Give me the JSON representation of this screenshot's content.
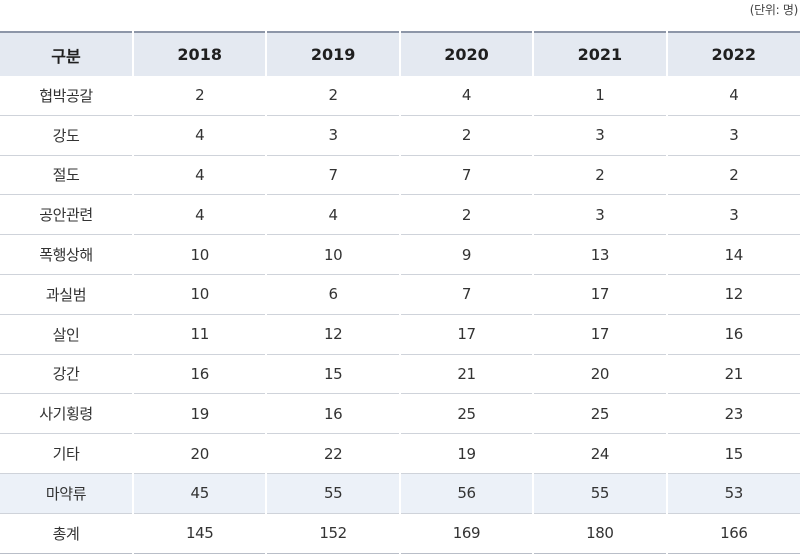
{
  "unit_note": "(단위: 명)",
  "header": [
    "구분",
    "2018",
    "2019",
    "2020",
    "2021",
    "2022"
  ],
  "rows": [
    {
      "label": "협박공갈",
      "values": [
        "2",
        "2",
        "4",
        "1",
        "4"
      ]
    },
    {
      "label": "강도",
      "values": [
        "4",
        "3",
        "2",
        "3",
        "3"
      ]
    },
    {
      "label": "절도",
      "values": [
        "4",
        "7",
        "7",
        "2",
        "2"
      ]
    },
    {
      "label": "공안관련",
      "values": [
        "4",
        "4",
        "2",
        "3",
        "3"
      ]
    },
    {
      "label": "폭행상해",
      "values": [
        "10",
        "10",
        "9",
        "13",
        "14"
      ]
    },
    {
      "label": "과실범",
      "values": [
        "10",
        "6",
        "7",
        "17",
        "12"
      ]
    },
    {
      "label": "살인",
      "values": [
        "11",
        "12",
        "17",
        "17",
        "16"
      ]
    },
    {
      "label": "강간",
      "values": [
        "16",
        "15",
        "21",
        "20",
        "21"
      ]
    },
    {
      "label": "사기횡령",
      "values": [
        "19",
        "16",
        "25",
        "25",
        "23"
      ]
    },
    {
      "label": "기타",
      "values": [
        "20",
        "22",
        "19",
        "24",
        "15"
      ]
    },
    {
      "label": "마약류",
      "values": [
        "45",
        "55",
        "56",
        "55",
        "53"
      ],
      "highlight": true
    },
    {
      "label": "총계",
      "values": [
        "145",
        "152",
        "169",
        "180",
        "166"
      ]
    }
  ],
  "colors": {
    "header_bg": "#e4e9f1",
    "highlight_bg": "#ecf1f8",
    "rule": "#cfd3da"
  }
}
